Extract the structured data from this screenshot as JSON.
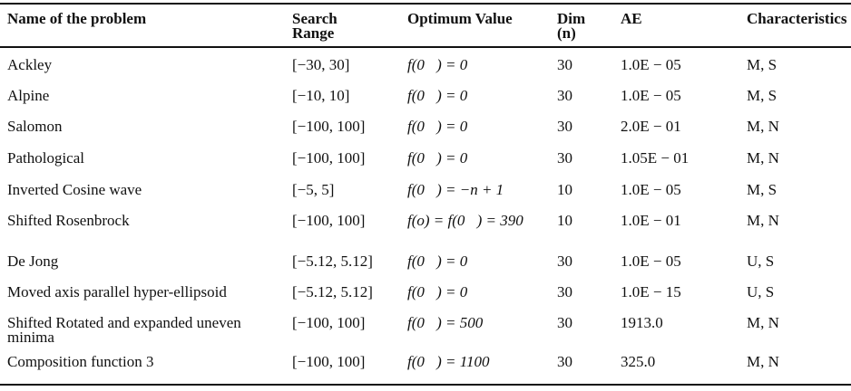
{
  "table": {
    "headers": [
      "Name of the problem",
      "Search Range",
      "Optimum Value",
      "Dim (n)",
      "AE",
      "Characteristics"
    ],
    "rows": [
      [
        "Ackley",
        "[−30, 30]",
        "f(0⃗) = 0",
        "30",
        "1.0E − 05",
        "M, S"
      ],
      [
        "Alpine",
        "[−10, 10]",
        "f(0⃗) = 0",
        "30",
        "1.0E − 05",
        "M, S"
      ],
      [
        "Salomon",
        "[−100, 100]",
        "f(0⃗) = 0",
        "30",
        "2.0E − 01",
        "M, N"
      ],
      [
        "Pathological",
        "[−100, 100]",
        "f(0⃗) = 0",
        "30",
        "1.05E − 01",
        "M, N"
      ],
      [
        "Inverted Cosine wave",
        "[−5, 5]",
        "f(0⃗) = −n + 1",
        "10",
        "1.0E − 05",
        "M, S"
      ],
      [
        "Shifted Rosenbrock",
        "[−100, 100]",
        "f(o) = f(0⃗) = 390",
        "10",
        "1.0E − 01",
        "M, N"
      ],
      [
        "De Jong",
        "[−5.12, 5.12]",
        "f(0⃗) = 0",
        "30",
        "1.0E − 05",
        "U, S"
      ],
      [
        "Moved axis parallel hyper-ellipsoid",
        "[−5.12, 5.12]",
        "f(0⃗) = 0",
        "30",
        "1.0E − 15",
        "U, S"
      ],
      [
        "Shifted Rotated and expanded uneven minima",
        "[−100, 100]",
        "f(0⃗) = 500",
        "30",
        "1913.0",
        "M, N"
      ],
      [
        "Composition function 3",
        "[−100, 100]",
        "f(0⃗) = 1100",
        "30",
        "325.0",
        "M, N"
      ]
    ]
  }
}
